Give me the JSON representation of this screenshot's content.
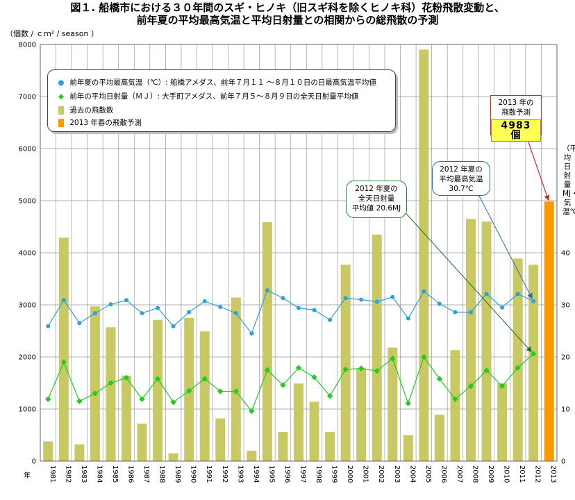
{
  "title_line1": "図１. 船橋市における３０年間のスギ・ヒノキ（旧スギ科を除くヒノキ科）花粉飛散変動と、",
  "title_line2": "前年夏の平均最高気温と平均日射量との相関からの総飛散の予測",
  "y_unit": "（個数 / ｃｍ² / season ）",
  "right_axis_label": "（平均日射量MJ・気温℃）",
  "year_axis_label": "年",
  "legend": {
    "temp": "前年夏の平均最高気温（℃）: 船橋アメダス、前年７月１１ ～８月１０日の日最高気温平均値",
    "sun": "前年の平均日射量（ＭＪ）: 大手町アメダス、前年７月５～８月９日の全天日射量平均値",
    "past": "過去の飛散数",
    "forecast": "2013 年春の飛散予測"
  },
  "callouts": {
    "temp_l1": "2012 年夏の",
    "temp_l2": "平均最高気温",
    "temp_l3": "30.7℃",
    "sun_l1": "2012 年夏の",
    "sun_l2": "全天日射量",
    "sun_l3": "平均値 20.6MJ",
    "f_l1": "2013 年の",
    "f_l2": "飛散予測",
    "f_value": "4983",
    "f_unit": "個"
  },
  "colors": {
    "bar": "#c8c864",
    "forecast_bar": "#ff9900",
    "temp_line": "#2f9fe0",
    "sun_line": "#22cc22",
    "grid": "#999999",
    "arrow_temp": "#1f6fb3",
    "arrow_sun": "#1a6e2a",
    "arrow_forecast": "#e02020"
  },
  "chart_data": {
    "type": "bar",
    "categories": [
      "1981",
      "1982",
      "1983",
      "1984",
      "1985",
      "1986",
      "1987",
      "1988",
      "1989",
      "1990",
      "1991",
      "1992",
      "1993",
      "1994",
      "1995",
      "1996",
      "1997",
      "1998",
      "1999",
      "2000",
      "2001",
      "2002",
      "2003",
      "2004",
      "2005",
      "2006",
      "2007",
      "2008",
      "2009",
      "2010",
      "2011",
      "2012",
      "2013"
    ],
    "left_ylim": [
      0,
      8000
    ],
    "left_yticks": [
      0,
      1000,
      2000,
      3000,
      4000,
      5000,
      6000,
      7000,
      8000
    ],
    "right_ylim": [
      0,
      80
    ],
    "right_yticks": [
      0,
      10,
      20,
      30,
      40
    ],
    "grid": true,
    "series": [
      {
        "name": "過去の飛散数",
        "kind": "bar",
        "values": [
          380,
          4290,
          320,
          2970,
          2570,
          1640,
          720,
          2710,
          150,
          2750,
          2490,
          820,
          3140,
          200,
          4590,
          560,
          1490,
          1140,
          560,
          3770,
          1780,
          4350,
          2180,
          500,
          7900,
          890,
          2130,
          4650,
          4600,
          1490,
          3890,
          3770,
          null
        ]
      },
      {
        "name": "2013 年春の飛散予測",
        "kind": "bar",
        "values": [
          null,
          null,
          null,
          null,
          null,
          null,
          null,
          null,
          null,
          null,
          null,
          null,
          null,
          null,
          null,
          null,
          null,
          null,
          null,
          null,
          null,
          null,
          null,
          null,
          null,
          null,
          null,
          null,
          null,
          null,
          null,
          null,
          4983
        ]
      },
      {
        "name": "前年夏の平均最高気温（℃）",
        "kind": "line",
        "axis": "right",
        "values": [
          25.9,
          30.9,
          26.5,
          28.4,
          30.1,
          30.9,
          28.4,
          29.4,
          25.9,
          28.6,
          30.7,
          29.6,
          28.4,
          24.5,
          32.8,
          31.3,
          29.4,
          29.0,
          27.1,
          31.3,
          31.0,
          30.6,
          31.5,
          27.4,
          32.6,
          30.2,
          28.6,
          28.6,
          32.1,
          29.5,
          32.1,
          30.7,
          null
        ]
      },
      {
        "name": "前年の平均日射量（ＭＪ）",
        "kind": "line",
        "axis": "right",
        "values": [
          11.9,
          19.0,
          11.5,
          13.0,
          15.0,
          16.0,
          11.9,
          15.8,
          11.3,
          13.5,
          15.8,
          13.4,
          13.4,
          9.6,
          17.5,
          14.6,
          17.9,
          16.1,
          12.5,
          17.6,
          17.8,
          17.3,
          19.7,
          11.1,
          20.0,
          15.8,
          11.9,
          14.4,
          17.4,
          14.4,
          17.9,
          20.6,
          null
        ]
      }
    ]
  }
}
